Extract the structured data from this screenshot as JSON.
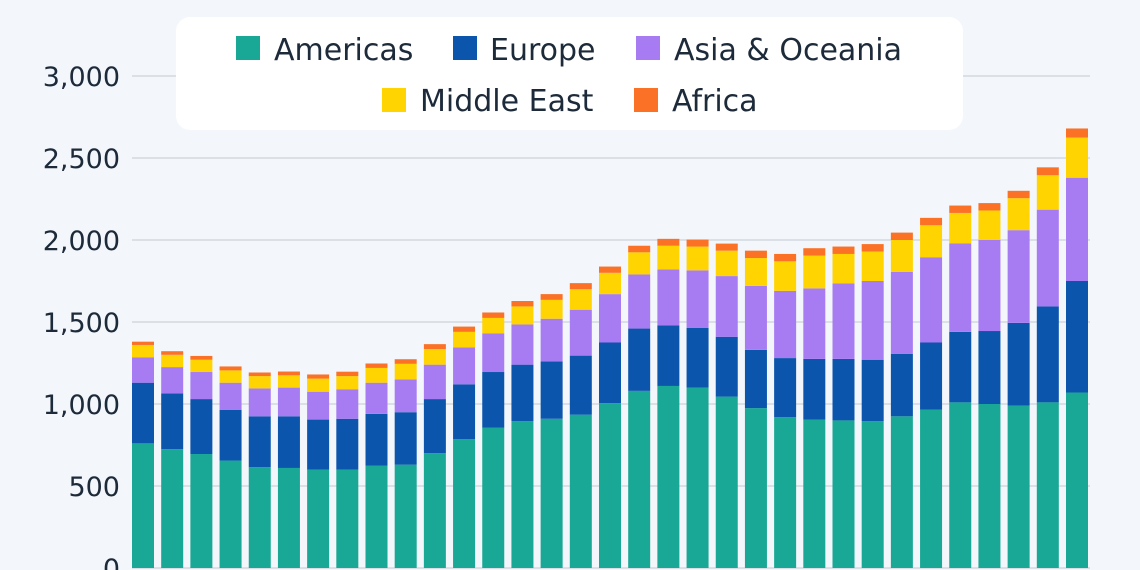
{
  "chart_data": {
    "type": "bar",
    "stacked": true,
    "title": "",
    "xlabel": "",
    "ylabel": "",
    "ylim": [
      0,
      3000
    ],
    "yticks": [
      0,
      500,
      1000,
      1500,
      2000,
      2500,
      3000
    ],
    "ytick_labels": [
      "0",
      "500",
      "1,000",
      "1,500",
      "2,000",
      "2,500",
      "3,000"
    ],
    "grid": true,
    "legend_position": "top-center",
    "colors": {
      "Americas": "#19a895",
      "Europe": "#0b55ad",
      "Asia & Oceania": "#a77cf3",
      "Middle East": "#ffd400",
      "Africa": "#fb7126"
    },
    "series": [
      {
        "name": "Americas",
        "values": [
          760,
          725,
          695,
          655,
          615,
          610,
          600,
          600,
          625,
          630,
          700,
          785,
          855,
          895,
          910,
          935,
          1005,
          1080,
          1110,
          1100,
          1045,
          975,
          920,
          905,
          900,
          895,
          925,
          965,
          1010,
          1000,
          990,
          1010,
          1070
        ]
      },
      {
        "name": "Europe",
        "values": [
          370,
          340,
          335,
          310,
          310,
          315,
          305,
          310,
          315,
          320,
          330,
          335,
          340,
          345,
          350,
          360,
          370,
          380,
          370,
          365,
          365,
          355,
          360,
          370,
          375,
          375,
          380,
          410,
          430,
          445,
          505,
          585,
          680
        ]
      },
      {
        "name": "Asia & Oceania",
        "values": [
          155,
          160,
          165,
          165,
          170,
          175,
          170,
          180,
          190,
          200,
          210,
          225,
          235,
          245,
          260,
          280,
          295,
          330,
          340,
          350,
          370,
          390,
          410,
          430,
          460,
          480,
          500,
          520,
          540,
          555,
          565,
          590,
          630
        ]
      },
      {
        "name": "Middle East",
        "values": [
          75,
          75,
          75,
          75,
          75,
          75,
          80,
          80,
          90,
          95,
          95,
          95,
          95,
          110,
          115,
          125,
          130,
          135,
          145,
          145,
          155,
          170,
          180,
          200,
          180,
          180,
          195,
          195,
          185,
          180,
          195,
          210,
          245
        ]
      },
      {
        "name": "Africa",
        "values": [
          20,
          22,
          23,
          24,
          22,
          23,
          25,
          27,
          27,
          28,
          30,
          32,
          33,
          33,
          35,
          37,
          38,
          40,
          42,
          43,
          43,
          45,
          45,
          45,
          45,
          45,
          45,
          45,
          45,
          45,
          45,
          48,
          55
        ]
      }
    ]
  }
}
